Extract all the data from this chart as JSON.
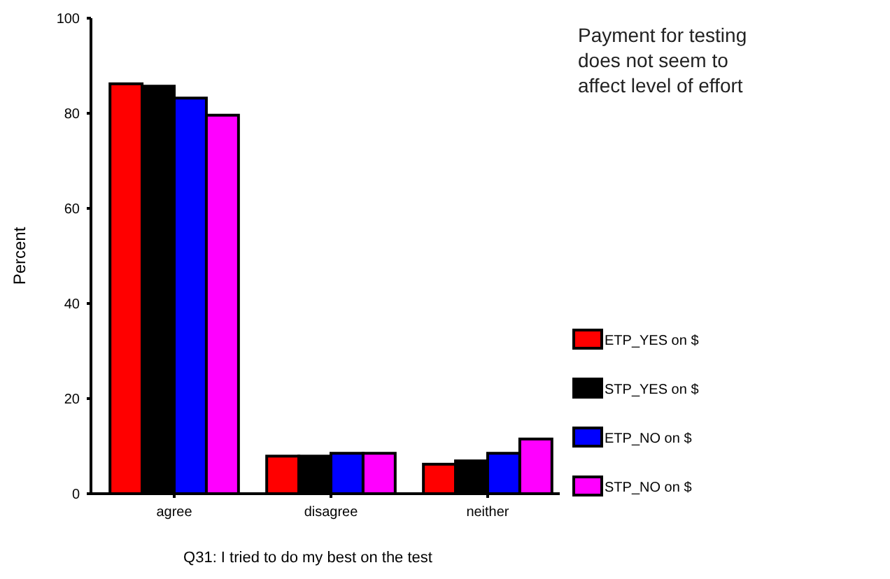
{
  "chart_data": {
    "type": "bar",
    "title": "Payment for testing does not seem to affect level of effort",
    "xlabel": "Q31: I tried to do my best on the test",
    "ylabel": "Percent",
    "categories": [
      "agree",
      "disagree",
      "neither"
    ],
    "series": [
      {
        "name": "ETP_YES on $",
        "color": "#ff0000",
        "values": [
          86.2,
          7.9,
          6.2
        ]
      },
      {
        "name": "STP_YES on $",
        "color": "#000000",
        "values": [
          85.7,
          7.9,
          6.9
        ]
      },
      {
        "name": "ETP_NO on $",
        "color": "#0000ff",
        "values": [
          83.2,
          8.5,
          8.5
        ]
      },
      {
        "name": "STP_NO on $",
        "color": "#ff00ff",
        "values": [
          79.6,
          8.5,
          11.5
        ]
      }
    ],
    "ylim": [
      0,
      100
    ],
    "yticks": [
      0,
      20,
      40,
      60,
      80,
      100
    ],
    "grid": false,
    "legend": "right"
  }
}
